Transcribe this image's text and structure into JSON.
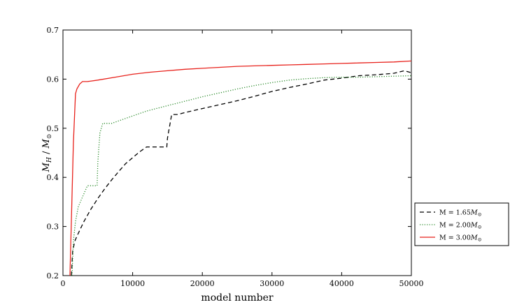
{
  "chart_data": {
    "type": "line",
    "xlabel": "model number",
    "ylabel": "M_H / M_⊙",
    "xlim": [
      0,
      50000
    ],
    "ylim": [
      0.2,
      0.7
    ],
    "xticks": [
      0,
      10000,
      20000,
      30000,
      40000,
      50000
    ],
    "yticks": [
      0.2,
      0.3,
      0.4,
      0.5,
      0.6,
      0.7
    ],
    "grid": false,
    "legend_position": "right, outside the plot",
    "series": [
      {
        "name": "M = 1.65M_⊙",
        "legend_text": "M = 1.65",
        "color": "#000000",
        "style": "dashed",
        "x": [
          1200,
          1400,
          1700,
          2000,
          2500,
          3000,
          4000,
          5000,
          6000,
          7000,
          8000,
          9000,
          10000,
          11000,
          12000,
          14900,
          15000,
          15600,
          16500,
          17500,
          20000,
          22500,
          25000,
          27500,
          30000,
          32500,
          35000,
          37500,
          40000,
          42500,
          45000,
          47500,
          49000,
          50000
        ],
        "y": [
          0.2,
          0.25,
          0.27,
          0.28,
          0.295,
          0.31,
          0.335,
          0.357,
          0.377,
          0.395,
          0.412,
          0.428,
          0.44,
          0.452,
          0.462,
          0.462,
          0.48,
          0.528,
          0.528,
          0.532,
          0.54,
          0.548,
          0.556,
          0.565,
          0.575,
          0.583,
          0.59,
          0.598,
          0.602,
          0.607,
          0.609,
          0.612,
          0.617,
          0.613
        ]
      },
      {
        "name": "M = 2.00M_⊙",
        "legend_text": "M = 2.00",
        "color": "#2a8a2a",
        "style": "dotted",
        "x": [
          1300,
          1500,
          1800,
          2200,
          2800,
          3500,
          4900,
          5000,
          5300,
          5700,
          6500,
          7000,
          8000,
          10000,
          12000,
          15000,
          17500,
          20000,
          22500,
          25000,
          27500,
          30000,
          32500,
          35000,
          37500,
          40000,
          42500,
          45000,
          47500,
          50000
        ],
        "y": [
          0.2,
          0.27,
          0.31,
          0.34,
          0.36,
          0.383,
          0.383,
          0.43,
          0.49,
          0.51,
          0.51,
          0.51,
          0.515,
          0.525,
          0.535,
          0.546,
          0.555,
          0.564,
          0.572,
          0.58,
          0.587,
          0.593,
          0.598,
          0.601,
          0.603,
          0.604,
          0.604,
          0.605,
          0.606,
          0.607
        ]
      },
      {
        "name": "M = 3.00M_⊙",
        "legend_text": "M = 3.00",
        "color": "#e8221c",
        "style": "solid",
        "x": [
          1000,
          1500,
          1800,
          2000,
          2400,
          2800,
          3500,
          5000,
          7500,
          10000,
          12500,
          15000,
          17500,
          20000,
          22500,
          25000,
          27500,
          30000,
          32500,
          35000,
          37500,
          40000,
          42500,
          45000,
          47500,
          50000
        ],
        "y": [
          0.2,
          0.47,
          0.57,
          0.58,
          0.59,
          0.595,
          0.595,
          0.598,
          0.604,
          0.61,
          0.614,
          0.617,
          0.62,
          0.622,
          0.624,
          0.626,
          0.627,
          0.628,
          0.629,
          0.63,
          0.631,
          0.632,
          0.633,
          0.634,
          0.635,
          0.637
        ]
      }
    ]
  }
}
